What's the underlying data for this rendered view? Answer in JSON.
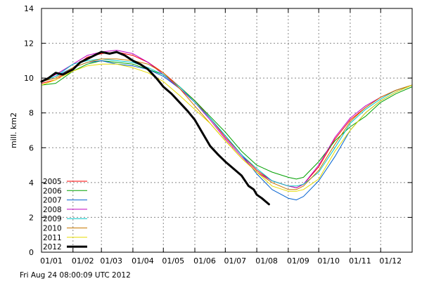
{
  "chart_data": {
    "type": "line",
    "title": "",
    "xlabel": "",
    "ylabel": "mill. km2",
    "ylim": [
      0,
      14
    ],
    "yticks": [
      0,
      2,
      4,
      6,
      8,
      10,
      12,
      14
    ],
    "xlim": [
      1,
      366
    ],
    "xtick_labels": [
      "01/01",
      "01/02",
      "01/03",
      "01/04",
      "01/05",
      "01/06",
      "01/07",
      "01/08",
      "01/09",
      "01/10",
      "01/11",
      "01/12"
    ],
    "xtick_days": [
      1,
      32,
      60,
      91,
      121,
      152,
      182,
      213,
      244,
      274,
      305,
      335
    ],
    "grid": true,
    "legend_position": "bottom-left",
    "x_unit": "day of year",
    "series": [
      {
        "name": "2005",
        "color": "#ff0000",
        "width": 1,
        "points": [
          [
            1,
            9.7
          ],
          [
            15,
            9.9
          ],
          [
            32,
            10.6
          ],
          [
            46,
            11.2
          ],
          [
            60,
            11.4
          ],
          [
            75,
            11.5
          ],
          [
            91,
            11.3
          ],
          [
            106,
            10.9
          ],
          [
            121,
            10.3
          ],
          [
            137,
            9.5
          ],
          [
            152,
            8.7
          ],
          [
            167,
            7.7
          ],
          [
            182,
            6.6
          ],
          [
            198,
            5.6
          ],
          [
            213,
            4.7
          ],
          [
            228,
            4.1
          ],
          [
            244,
            3.8
          ],
          [
            252,
            3.7
          ],
          [
            259,
            3.9
          ],
          [
            274,
            4.9
          ],
          [
            290,
            6.5
          ],
          [
            305,
            7.6
          ],
          [
            320,
            8.3
          ],
          [
            335,
            8.9
          ],
          [
            350,
            9.3
          ],
          [
            366,
            9.6
          ]
        ]
      },
      {
        "name": "2006",
        "color": "#00a000",
        "width": 1,
        "points": [
          [
            1,
            9.6
          ],
          [
            15,
            9.7
          ],
          [
            32,
            10.4
          ],
          [
            46,
            10.8
          ],
          [
            60,
            11.0
          ],
          [
            75,
            10.9
          ],
          [
            91,
            10.8
          ],
          [
            106,
            10.5
          ],
          [
            121,
            10.2
          ],
          [
            137,
            9.5
          ],
          [
            152,
            8.7
          ],
          [
            167,
            7.8
          ],
          [
            182,
            6.9
          ],
          [
            198,
            5.8
          ],
          [
            213,
            5.0
          ],
          [
            228,
            4.6
          ],
          [
            244,
            4.3
          ],
          [
            252,
            4.2
          ],
          [
            259,
            4.3
          ],
          [
            274,
            5.2
          ],
          [
            290,
            6.4
          ],
          [
            305,
            7.2
          ],
          [
            320,
            7.8
          ],
          [
            335,
            8.6
          ],
          [
            350,
            9.1
          ],
          [
            366,
            9.5
          ]
        ]
      },
      {
        "name": "2007",
        "color": "#0060d0",
        "width": 1,
        "points": [
          [
            1,
            9.8
          ],
          [
            15,
            10.1
          ],
          [
            32,
            10.6
          ],
          [
            46,
            10.9
          ],
          [
            60,
            11.0
          ],
          [
            75,
            10.8
          ],
          [
            91,
            10.7
          ],
          [
            106,
            10.5
          ],
          [
            121,
            10.1
          ],
          [
            137,
            9.4
          ],
          [
            152,
            8.6
          ],
          [
            167,
            7.7
          ],
          [
            182,
            6.7
          ],
          [
            198,
            5.6
          ],
          [
            213,
            4.5
          ],
          [
            228,
            3.6
          ],
          [
            244,
            3.1
          ],
          [
            252,
            3.0
          ],
          [
            259,
            3.2
          ],
          [
            274,
            4.1
          ],
          [
            290,
            5.5
          ],
          [
            305,
            7.0
          ],
          [
            320,
            8.0
          ],
          [
            335,
            8.7
          ],
          [
            350,
            9.2
          ],
          [
            366,
            9.6
          ]
        ]
      },
      {
        "name": "2008",
        "color": "#c000c0",
        "width": 1,
        "points": [
          [
            1,
            9.8
          ],
          [
            15,
            10.2
          ],
          [
            32,
            10.8
          ],
          [
            46,
            11.3
          ],
          [
            60,
            11.5
          ],
          [
            75,
            11.6
          ],
          [
            91,
            11.4
          ],
          [
            106,
            10.9
          ],
          [
            121,
            10.2
          ],
          [
            137,
            9.4
          ],
          [
            152,
            8.6
          ],
          [
            167,
            7.6
          ],
          [
            182,
            6.5
          ],
          [
            198,
            5.5
          ],
          [
            213,
            4.6
          ],
          [
            228,
            4.1
          ],
          [
            244,
            3.8
          ],
          [
            252,
            3.7
          ],
          [
            259,
            3.9
          ],
          [
            274,
            5.0
          ],
          [
            290,
            6.6
          ],
          [
            305,
            7.7
          ],
          [
            320,
            8.4
          ],
          [
            335,
            8.9
          ],
          [
            350,
            9.3
          ],
          [
            366,
            9.6
          ]
        ]
      },
      {
        "name": "2009",
        "color": "#00c8c8",
        "width": 1,
        "points": [
          [
            1,
            9.8
          ],
          [
            15,
            10.1
          ],
          [
            32,
            10.8
          ],
          [
            46,
            11.0
          ],
          [
            60,
            11.1
          ],
          [
            75,
            11.0
          ],
          [
            91,
            10.9
          ],
          [
            106,
            10.6
          ],
          [
            121,
            10.2
          ],
          [
            137,
            9.5
          ],
          [
            152,
            8.6
          ],
          [
            167,
            7.7
          ],
          [
            182,
            6.7
          ],
          [
            198,
            5.6
          ],
          [
            213,
            4.8
          ],
          [
            228,
            4.1
          ],
          [
            244,
            3.8
          ],
          [
            252,
            3.8
          ],
          [
            259,
            3.9
          ],
          [
            274,
            4.6
          ],
          [
            290,
            6.0
          ],
          [
            305,
            7.4
          ],
          [
            320,
            8.2
          ],
          [
            335,
            8.8
          ],
          [
            350,
            9.3
          ],
          [
            366,
            9.6
          ]
        ]
      },
      {
        "name": "2010",
        "color": "#c87800",
        "width": 1,
        "points": [
          [
            1,
            9.8
          ],
          [
            15,
            10.0
          ],
          [
            32,
            10.6
          ],
          [
            46,
            10.9
          ],
          [
            60,
            11.1
          ],
          [
            75,
            11.1
          ],
          [
            91,
            11.0
          ],
          [
            106,
            10.8
          ],
          [
            121,
            10.3
          ],
          [
            137,
            9.4
          ],
          [
            152,
            8.4
          ],
          [
            167,
            7.4
          ],
          [
            182,
            6.4
          ],
          [
            198,
            5.4
          ],
          [
            213,
            4.6
          ],
          [
            228,
            4.0
          ],
          [
            244,
            3.6
          ],
          [
            252,
            3.6
          ],
          [
            259,
            3.8
          ],
          [
            274,
            4.7
          ],
          [
            290,
            6.2
          ],
          [
            305,
            7.5
          ],
          [
            320,
            8.3
          ],
          [
            335,
            8.9
          ],
          [
            350,
            9.3
          ],
          [
            366,
            9.6
          ]
        ]
      },
      {
        "name": "2011",
        "color": "#e6dc00",
        "width": 1,
        "points": [
          [
            1,
            9.6
          ],
          [
            15,
            9.9
          ],
          [
            32,
            10.4
          ],
          [
            46,
            10.7
          ],
          [
            60,
            10.8
          ],
          [
            75,
            10.8
          ],
          [
            91,
            10.6
          ],
          [
            106,
            10.3
          ],
          [
            121,
            9.8
          ],
          [
            137,
            9.0
          ],
          [
            152,
            8.2
          ],
          [
            167,
            7.4
          ],
          [
            182,
            6.4
          ],
          [
            198,
            5.4
          ],
          [
            213,
            4.6
          ],
          [
            228,
            3.8
          ],
          [
            244,
            3.5
          ],
          [
            252,
            3.5
          ],
          [
            259,
            3.6
          ],
          [
            274,
            4.2
          ],
          [
            290,
            5.8
          ],
          [
            305,
            7.0
          ],
          [
            320,
            8.0
          ],
          [
            335,
            8.7
          ],
          [
            350,
            9.2
          ],
          [
            366,
            9.6
          ]
        ]
      },
      {
        "name": "2012",
        "color": "#000000",
        "width": 3,
        "points": [
          [
            1,
            9.8
          ],
          [
            8,
            10.0
          ],
          [
            15,
            10.3
          ],
          [
            22,
            10.2
          ],
          [
            32,
            10.5
          ],
          [
            39,
            10.9
          ],
          [
            46,
            11.1
          ],
          [
            53,
            11.3
          ],
          [
            60,
            11.5
          ],
          [
            68,
            11.4
          ],
          [
            75,
            11.5
          ],
          [
            83,
            11.3
          ],
          [
            91,
            11.0
          ],
          [
            98,
            10.8
          ],
          [
            106,
            10.5
          ],
          [
            114,
            10.0
          ],
          [
            121,
            9.5
          ],
          [
            129,
            9.1
          ],
          [
            137,
            8.6
          ],
          [
            145,
            8.1
          ],
          [
            152,
            7.6
          ],
          [
            160,
            6.8
          ],
          [
            167,
            6.1
          ],
          [
            175,
            5.6
          ],
          [
            182,
            5.2
          ],
          [
            190,
            4.8
          ],
          [
            198,
            4.4
          ],
          [
            205,
            3.8
          ],
          [
            210,
            3.6
          ],
          [
            213,
            3.3
          ],
          [
            218,
            3.1
          ],
          [
            222,
            2.9
          ],
          [
            225,
            2.75
          ]
        ]
      }
    ]
  },
  "footer": {
    "timestamp": "Fri Aug 24 08:00:09 UTC 2012"
  }
}
